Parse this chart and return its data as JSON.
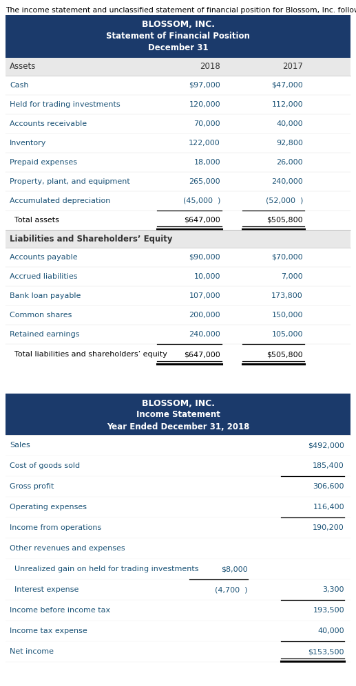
{
  "intro_text": "The income statement and unclassified statement of financial position for Blossom, Inc. follow:",
  "header_bg": "#1b3a6b",
  "row_text_color": "#1a5276",
  "label_text_color": "#1a5276",
  "sfp_title1": "BLOSSOM, INC.",
  "sfp_title2": "Statement of Financial Position",
  "sfp_title3": "December 31",
  "sfp_asset_rows": [
    [
      "Cash",
      "$97,000",
      "$47,000"
    ],
    [
      "Held for trading investments",
      "120,000",
      "112,000"
    ],
    [
      "Accounts receivable",
      "70,000",
      "40,000"
    ],
    [
      "Inventory",
      "122,000",
      "92,800"
    ],
    [
      "Prepaid expenses",
      "18,000",
      "26,000"
    ],
    [
      "Property, plant, and equipment",
      "265,000",
      "240,000"
    ],
    [
      "Accumulated depreciation",
      "(45,000  )",
      "(52,000  )"
    ]
  ],
  "sfp_total_assets": [
    "  Total assets",
    "$647,000",
    "$505,800"
  ],
  "sfp_liab_header": "Liabilities and Shareholders’ Equity",
  "sfp_liab_rows": [
    [
      "Accounts payable",
      "$90,000",
      "$70,000"
    ],
    [
      "Accrued liabilities",
      "10,000",
      "7,000"
    ],
    [
      "Bank loan payable",
      "107,000",
      "173,800"
    ],
    [
      "Common shares",
      "200,000",
      "150,000"
    ],
    [
      "Retained earnings",
      "240,000",
      "105,000"
    ]
  ],
  "sfp_total_liab": [
    "  Total liabilities and shareholders’ equity",
    "$647,000",
    "$505,800"
  ],
  "is_title1": "BLOSSOM, INC.",
  "is_title2": "Income Statement",
  "is_title3": "Year Ended December 31, 2018",
  "is_rows": [
    {
      "label": "Sales",
      "col2": "",
      "col3": "$492,000",
      "line_above_col2": false,
      "line_above_col3": false,
      "indent": 0
    },
    {
      "label": "Cost of goods sold",
      "col2": "",
      "col3": "185,400",
      "line_above_col2": false,
      "line_above_col3": false,
      "indent": 0
    },
    {
      "label": "Gross profit",
      "col2": "",
      "col3": "306,600",
      "line_above_col2": false,
      "line_above_col3": true,
      "indent": 0
    },
    {
      "label": "Operating expenses",
      "col2": "",
      "col3": "116,400",
      "line_above_col2": false,
      "line_above_col3": false,
      "indent": 0
    },
    {
      "label": "Income from operations",
      "col2": "",
      "col3": "190,200",
      "line_above_col2": false,
      "line_above_col3": true,
      "indent": 0
    },
    {
      "label": "Other revenues and expenses",
      "col2": "",
      "col3": "",
      "line_above_col2": false,
      "line_above_col3": false,
      "indent": 0
    },
    {
      "label": "  Unrealized gain on held for trading investments",
      "col2": "$8,000",
      "col3": "",
      "line_above_col2": false,
      "line_above_col3": false,
      "indent": 0
    },
    {
      "label": "  Interest expense",
      "col2": "(4,700  )",
      "col3": "3,300",
      "line_above_col2": true,
      "line_above_col3": false,
      "indent": 0
    },
    {
      "label": "Income before income tax",
      "col2": "",
      "col3": "193,500",
      "line_above_col2": false,
      "line_above_col3": true,
      "indent": 0
    },
    {
      "label": "Income tax expense",
      "col2": "",
      "col3": "40,000",
      "line_above_col2": false,
      "line_above_col3": false,
      "indent": 0
    },
    {
      "label": "Net income",
      "col2": "",
      "col3": "$153,500",
      "line_above_col2": false,
      "line_above_col3": true,
      "indent": 0
    }
  ]
}
